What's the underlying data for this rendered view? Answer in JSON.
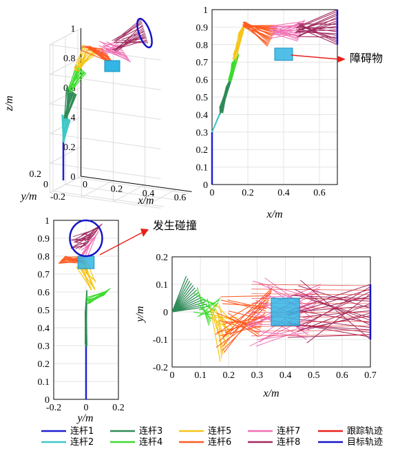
{
  "colors": {
    "link1": "#1f1fd6",
    "link2": "#3ec7c7",
    "link3": "#2e8b57",
    "link4": "#3ddc2e",
    "link5": "#f5c518",
    "link6": "#ff5a1f",
    "link7": "#f06fb4",
    "link8": "#a0295e",
    "track": "#e8201a",
    "target": "#1414c8",
    "obstacle": "#33b5e5",
    "arrow": "#e8201a"
  },
  "annotations": {
    "obstacle": "障碍物",
    "collision": "发生碰撞"
  },
  "legend": [
    {
      "label": "连杆1",
      "color_key": "link1"
    },
    {
      "label": "连杆2",
      "color_key": "link2"
    },
    {
      "label": "连杆3",
      "color_key": "link3"
    },
    {
      "label": "连杆4",
      "color_key": "link4"
    },
    {
      "label": "连杆5",
      "color_key": "link5"
    },
    {
      "label": "连杆6",
      "color_key": "link6"
    },
    {
      "label": "连杆7",
      "color_key": "link7"
    },
    {
      "label": "连杆8",
      "color_key": "link8"
    },
    {
      "label": "跟踪轨迹",
      "color_key": "track"
    },
    {
      "label": "目标轨迹",
      "color_key": "target"
    }
  ],
  "chart_data": [
    {
      "id": "panel-3d",
      "type": "line",
      "view": "3d",
      "xlabel": "x/m",
      "ylabel": "y/m",
      "zlabel": "z/m",
      "x_ticks": [
        "0",
        "0.2",
        "0.4",
        "0.6"
      ],
      "y_ticks": [
        "-0.2",
        "0",
        "0.2"
      ],
      "z_ticks": [
        "0",
        "0.2",
        "0.4",
        "0.6",
        "0.8",
        "1"
      ],
      "series": [
        {
          "name": "连杆1",
          "values": [
            [
              0,
              0,
              0
            ],
            [
              0,
              0,
              0.2
            ]
          ]
        },
        {
          "name": "连杆2",
          "values": [
            [
              0,
              0,
              0.2
            ],
            [
              0,
              0,
              0.4
            ]
          ]
        },
        {
          "name": "目标轨迹",
          "values": [
            [
              0.6,
              0.1,
              0.9
            ],
            [
              0.6,
              -0.1,
              0.9
            ]
          ]
        }
      ]
    },
    {
      "id": "panel-xz",
      "type": "line",
      "xlabel": "x/m",
      "ylabel": "",
      "xlim": [
        0,
        0.7
      ],
      "ylim": [
        0,
        1
      ],
      "x_ticks": [
        "0",
        "0.2",
        "0.4",
        "0.6"
      ],
      "y_ticks": [
        "0",
        "0.1",
        "0.2",
        "0.3",
        "0.4",
        "0.5",
        "0.6",
        "0.7",
        "0.8",
        "0.9",
        "1"
      ],
      "obstacle": {
        "x": [
          0.35,
          0.45
        ],
        "y": [
          0.71,
          0.78
        ]
      },
      "series": [
        {
          "name": "连杆1",
          "x": [
            0,
            0
          ],
          "y": [
            0,
            0.3
          ]
        },
        {
          "name": "连杆2",
          "x": [
            0,
            0.05
          ],
          "y": [
            0.3,
            0.4
          ]
        },
        {
          "name": "连杆3",
          "x": [
            0.05,
            0.1
          ],
          "y": [
            0.4,
            0.6
          ]
        },
        {
          "name": "连杆4",
          "x": [
            0.1,
            0.13
          ],
          "y": [
            0.6,
            0.7
          ]
        },
        {
          "name": "连杆5",
          "x": [
            0.13,
            0.18
          ],
          "y": [
            0.7,
            0.93
          ]
        },
        {
          "name": "连杆6",
          "x": [
            0.18,
            0.35
          ],
          "y": [
            0.93,
            0.93
          ]
        },
        {
          "name": "连杆7",
          "x": [
            0.35,
            0.5
          ],
          "y": [
            0.93,
            0.85
          ]
        },
        {
          "name": "连杆8",
          "x": [
            0.5,
            0.7
          ],
          "y": [
            0.85,
            0.9
          ]
        },
        {
          "name": "目标轨迹",
          "x": [
            0.7,
            0.7
          ],
          "y": [
            0.8,
            1.0
          ]
        }
      ]
    },
    {
      "id": "panel-yz",
      "type": "line",
      "xlabel": "y/m",
      "ylabel": "",
      "xlim": [
        -0.2,
        0.2
      ],
      "ylim": [
        0,
        1
      ],
      "x_ticks": [
        "-0.2",
        "0",
        "0.2"
      ],
      "y_ticks": [
        "0",
        "0.1",
        "0.2",
        "0.3",
        "0.4",
        "0.5",
        "0.6",
        "0.7",
        "0.8",
        "0.9",
        "1"
      ],
      "obstacle": {
        "x": [
          -0.05,
          0.05
        ],
        "y": [
          0.73,
          0.8
        ]
      },
      "target_circle": {
        "cx": 0.0,
        "cy": 0.9,
        "r": 0.1
      },
      "series": [
        {
          "name": "连杆1",
          "x": [
            0,
            0
          ],
          "y": [
            0,
            0.3
          ]
        },
        {
          "name": "连杆3",
          "x": [
            0,
            0.01
          ],
          "y": [
            0.3,
            0.55
          ]
        },
        {
          "name": "连杆4",
          "x": [
            0.01,
            0.16
          ],
          "y": [
            0.55,
            0.58
          ]
        }
      ]
    },
    {
      "id": "panel-xy",
      "type": "line",
      "xlabel": "x/m",
      "ylabel": "y/m",
      "xlim": [
        0,
        0.7
      ],
      "ylim": [
        -0.2,
        0.2
      ],
      "x_ticks": [
        "0",
        "0.1",
        "0.2",
        "0.3",
        "0.4",
        "0.5",
        "0.6",
        "0.7"
      ],
      "y_ticks": [
        "-0.2",
        "-0.1",
        "0",
        "0.1",
        "0.2"
      ],
      "obstacle": {
        "x": [
          0.35,
          0.45
        ],
        "y": [
          -0.05,
          0.05
        ]
      },
      "series": [
        {
          "name": "连杆3",
          "x": [
            0,
            0.12
          ],
          "y": [
            0,
            0.1
          ]
        },
        {
          "name": "连杆4",
          "x": [
            0.12,
            0.15
          ],
          "y": [
            0.1,
            0.0
          ]
        },
        {
          "name": "连杆5",
          "x": [
            0.15,
            0.2
          ],
          "y": [
            0.0,
            -0.16
          ]
        },
        {
          "name": "连杆6",
          "x": [
            0.2,
            0.35
          ],
          "y": [
            -0.16,
            0.0
          ]
        },
        {
          "name": "连杆7",
          "x": [
            0.35,
            0.5
          ],
          "y": [
            0.0,
            0.05
          ]
        },
        {
          "name": "连杆8",
          "x": [
            0.5,
            0.7
          ],
          "y": [
            0.05,
            0.1
          ]
        },
        {
          "name": "目标轨迹",
          "x": [
            0.7,
            0.7
          ],
          "y": [
            -0.1,
            0.1
          ]
        }
      ]
    }
  ]
}
